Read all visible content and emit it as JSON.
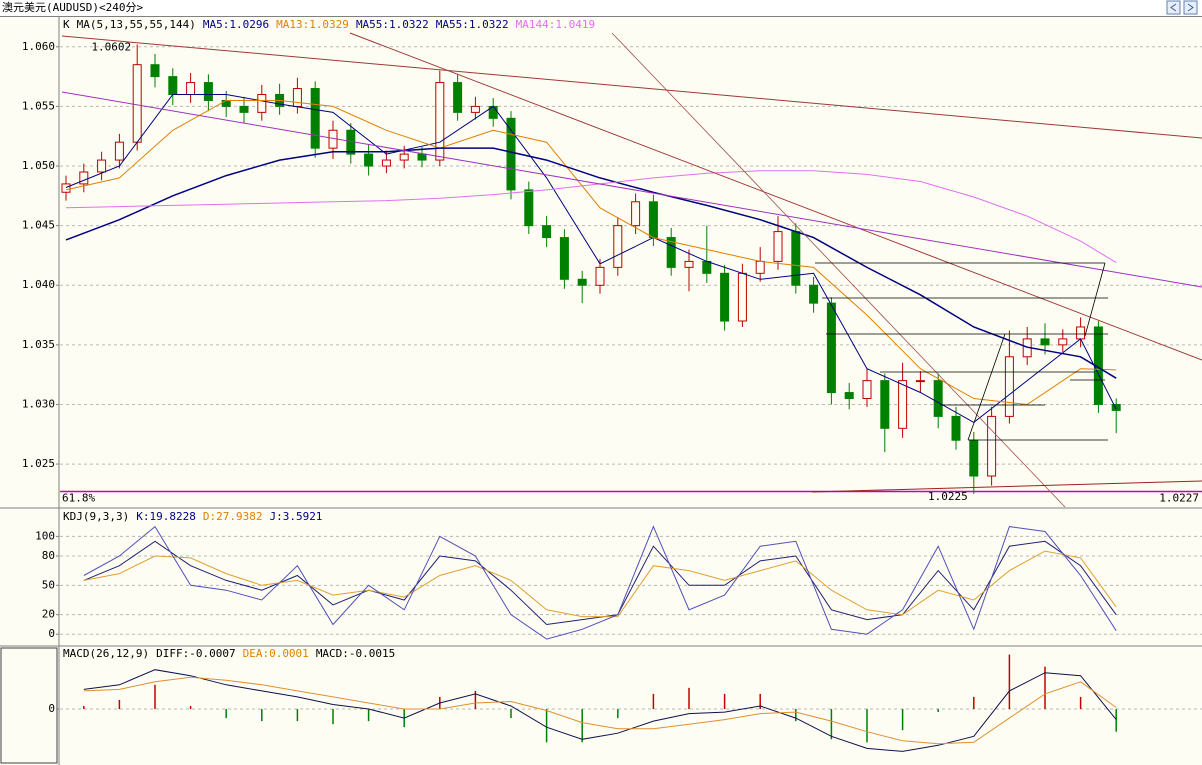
{
  "window_title": "澳元美元(AUDUSD)<240分>",
  "chart_data": [
    {
      "type": "candlestick",
      "header": [
        {
          "text": "K",
          "color": "#000000"
        },
        {
          "text": "MA(5,13,55,55,144)",
          "color": "#000000"
        },
        {
          "text": "MA5:1.0296",
          "color": "#000080"
        },
        {
          "text": "MA13:1.0329",
          "color": "#e08000"
        },
        {
          "text": "MA55:1.0322",
          "color": "#000080"
        },
        {
          "text": "MA55:1.0322",
          "color": "#000080"
        },
        {
          "text": "MA144:1.0419",
          "color": "#e070f0"
        }
      ],
      "up_color": "#c00000",
      "down_color": "#008000",
      "open": [
        1.0478,
        1.0485,
        1.0495,
        1.0505,
        1.052,
        1.0585,
        1.0575,
        1.056,
        1.057,
        1.0555,
        1.055,
        1.0545,
        1.056,
        1.055,
        1.0565,
        1.0515,
        1.053,
        1.051,
        1.05,
        1.0505,
        1.051,
        1.0505,
        1.057,
        1.0545,
        1.055,
        1.054,
        1.048,
        1.045,
        1.044,
        1.0405,
        1.04,
        1.0415,
        1.045,
        1.047,
        1.044,
        1.0415,
        1.042,
        1.041,
        1.037,
        1.041,
        1.042,
        1.0445,
        1.04,
        1.0385,
        1.031,
        1.0305,
        1.032,
        1.028,
        1.032,
        1.032,
        1.029,
        1.027,
        1.024,
        1.029,
        1.034,
        1.0355,
        1.035,
        1.0355,
        1.0365,
        1.03
      ],
      "high": [
        1.0492,
        1.0502,
        1.0512,
        1.0527,
        1.0602,
        1.0594,
        1.0582,
        1.0578,
        1.0577,
        1.0563,
        1.0558,
        1.0568,
        1.0569,
        1.0574,
        1.0571,
        1.0538,
        1.0536,
        1.0518,
        1.0513,
        1.0517,
        1.0516,
        1.058,
        1.0577,
        1.0558,
        1.0557,
        1.0546,
        1.0487,
        1.0458,
        1.0447,
        1.0412,
        1.0422,
        1.0457,
        1.0477,
        1.0476,
        1.0448,
        1.043,
        1.045,
        1.0417,
        1.0418,
        1.0432,
        1.0458,
        1.0452,
        1.0407,
        1.039,
        1.0318,
        1.033,
        1.0326,
        1.0335,
        1.0328,
        1.0326,
        1.0298,
        1.0277,
        1.0298,
        1.0362,
        1.0365,
        1.0368,
        1.0363,
        1.0373,
        1.037,
        1.0305
      ],
      "low": [
        1.0471,
        1.0478,
        1.0488,
        1.0498,
        1.0513,
        1.0566,
        1.0551,
        1.0553,
        1.0546,
        1.0541,
        1.0536,
        1.0538,
        1.0543,
        1.0544,
        1.0507,
        1.0506,
        1.0502,
        1.0492,
        1.0494,
        1.0498,
        1.0499,
        1.05,
        1.0538,
        1.0539,
        1.0533,
        1.0472,
        1.0443,
        1.0432,
        1.0397,
        1.0385,
        1.0393,
        1.0408,
        1.0443,
        1.0433,
        1.0408,
        1.0395,
        1.0402,
        1.0362,
        1.0365,
        1.0403,
        1.0413,
        1.0393,
        1.0377,
        1.03,
        1.0296,
        1.0298,
        1.026,
        1.0272,
        1.031,
        1.028,
        1.0262,
        1.0225,
        1.0232,
        1.0284,
        1.0333,
        1.0342,
        1.0344,
        1.0348,
        1.0293,
        1.0276
      ],
      "close": [
        1.0485,
        1.0495,
        1.0505,
        1.052,
        1.0585,
        1.0575,
        1.056,
        1.057,
        1.0555,
        1.055,
        1.0545,
        1.056,
        1.055,
        1.0565,
        1.0515,
        1.053,
        1.051,
        1.05,
        1.0505,
        1.051,
        1.0505,
        1.057,
        1.0545,
        1.055,
        1.054,
        1.048,
        1.045,
        1.044,
        1.0405,
        1.04,
        1.0415,
        1.045,
        1.047,
        1.044,
        1.0415,
        1.042,
        1.041,
        1.037,
        1.041,
        1.042,
        1.0445,
        1.04,
        1.0385,
        1.031,
        1.0305,
        1.032,
        1.028,
        1.032,
        1.032,
        1.029,
        1.027,
        1.024,
        1.029,
        1.034,
        1.0355,
        1.035,
        1.0355,
        1.0365,
        1.03,
        1.0295
      ],
      "series": [
        {
          "color": "#000080",
          "x": [
            0,
            3,
            6,
            9,
            12,
            15,
            18,
            21,
            24,
            27,
            30,
            33,
            36,
            39,
            42,
            45,
            48,
            51,
            54,
            57,
            59
          ],
          "values": [
            1.0482,
            1.05,
            1.056,
            1.056,
            1.0552,
            1.0545,
            1.051,
            1.052,
            1.055,
            1.049,
            1.0418,
            1.044,
            1.042,
            1.0405,
            1.041,
            1.033,
            1.031,
            1.0285,
            1.032,
            1.0355,
            1.0296
          ]
        },
        {
          "color": "#e08000",
          "x": [
            0,
            3,
            6,
            9,
            12,
            15,
            18,
            21,
            24,
            27,
            30,
            33,
            36,
            39,
            42,
            45,
            48,
            51,
            54,
            57,
            59
          ],
          "values": [
            1.048,
            1.049,
            1.053,
            1.0555,
            1.0555,
            1.055,
            1.053,
            1.0515,
            1.053,
            1.052,
            1.0465,
            1.044,
            1.043,
            1.042,
            1.0415,
            1.0375,
            1.033,
            1.0305,
            1.03,
            1.033,
            1.0329
          ]
        },
        {
          "color": "#000080",
          "width": 1.5,
          "x": [
            0,
            3,
            6,
            9,
            12,
            15,
            18,
            21,
            24,
            27,
            30,
            33,
            36,
            39,
            42,
            45,
            48,
            51,
            54,
            57,
            59
          ],
          "values": [
            1.0438,
            1.0455,
            1.0475,
            1.0492,
            1.0505,
            1.0512,
            1.0512,
            1.0515,
            1.0515,
            1.0505,
            1.049,
            1.0478,
            1.0467,
            1.0455,
            1.044,
            1.0415,
            1.0392,
            1.0365,
            1.0348,
            1.034,
            1.0322
          ]
        },
        {
          "color": "#e070f0",
          "x": [
            0,
            3,
            6,
            9,
            12,
            15,
            18,
            21,
            24,
            27,
            30,
            33,
            36,
            39,
            42,
            45,
            48,
            51,
            54,
            57,
            59
          ],
          "values": [
            1.0465,
            1.0466,
            1.0467,
            1.0468,
            1.0469,
            1.047,
            1.0471,
            1.0473,
            1.0476,
            1.048,
            1.0485,
            1.049,
            1.0494,
            1.0496,
            1.0496,
            1.0493,
            1.0487,
            1.0474,
            1.0458,
            1.0437,
            1.0419
          ]
        }
      ],
      "annotations": [
        1.0602,
        1.0225
      ],
      "fib_level": {
        "name": "61.8%",
        "value": 1.0227,
        "color": "#c000c0"
      },
      "ylim": [
        1.0214,
        1.0625
      ],
      "yticks": [
        1.025,
        {
          "value": 1.03,
          "label": "1.030"
        },
        1.035,
        {
          "value": 1.04,
          "label": "1.040"
        },
        1.045,
        {
          "value": 1.05,
          "label": "1.050"
        },
        1.055,
        {
          "value": 1.06,
          "label": "1.060"
        }
      ],
      "grid": true
    },
    {
      "type": "line",
      "header": [
        {
          "text": "KDJ(9,3,3)",
          "color": "#000000"
        },
        {
          "text": "K:19.8228",
          "color": "#000080"
        },
        {
          "text": "D:27.9382",
          "color": "#e08000"
        },
        {
          "text": "J:3.5921",
          "color": "#000080"
        }
      ],
      "x": [
        1,
        3,
        5,
        7,
        9,
        11,
        13,
        15,
        17,
        19,
        21,
        23,
        25,
        27,
        29,
        31,
        33,
        35,
        37,
        39,
        41,
        43,
        45,
        47,
        49,
        51,
        53,
        55,
        57,
        59
      ],
      "series": [
        {
          "color": "#20206e",
          "values": [
            55,
            70,
            95,
            70,
            55,
            45,
            60,
            30,
            45,
            35,
            80,
            75,
            45,
            10,
            15,
            20,
            90,
            50,
            50,
            75,
            80,
            25,
            15,
            20,
            65,
            25,
            90,
            95,
            70,
            19.8228
          ]
        },
        {
          "color": "#e0a030",
          "values": [
            55,
            62,
            80,
            78,
            62,
            50,
            55,
            40,
            45,
            38,
            60,
            70,
            55,
            25,
            18,
            18,
            70,
            65,
            55,
            65,
            75,
            45,
            25,
            20,
            45,
            35,
            65,
            85,
            78,
            27.9382
          ]
        },
        {
          "color": "#5050b8",
          "values": [
            60,
            80,
            110,
            50,
            45,
            35,
            70,
            10,
            50,
            25,
            100,
            80,
            20,
            -5,
            5,
            20,
            110,
            25,
            40,
            90,
            95,
            5,
            0,
            25,
            90,
            5,
            110,
            105,
            60,
            3.5921
          ]
        }
      ],
      "ylim": [
        -11,
        128
      ],
      "yticks": [
        0,
        20,
        50,
        80,
        100
      ],
      "grid": true
    },
    {
      "type": "macd",
      "header": [
        {
          "text": "MACD(26,12,9)",
          "color": "#000000"
        },
        {
          "text": "DIFF:-0.0007",
          "color": "#000000"
        },
        {
          "text": "DEA:0.0001",
          "color": "#e08000"
        },
        {
          "text": "MACD:-0.0015",
          "color": "#000000"
        }
      ],
      "x": [
        1,
        3,
        5,
        7,
        9,
        11,
        13,
        15,
        17,
        19,
        21,
        23,
        25,
        27,
        29,
        31,
        33,
        35,
        37,
        39,
        41,
        43,
        45,
        47,
        49,
        51,
        53,
        55,
        57,
        59
      ],
      "series": [
        {
          "color": "#10104a",
          "values": [
            0.0013,
            0.0016,
            0.0026,
            0.0022,
            0.0016,
            0.0012,
            0.0008,
            0.0003,
            0.0,
            -0.0006,
            0.0004,
            0.001,
            0.0002,
            -0.0012,
            -0.002,
            -0.0016,
            -0.0008,
            -0.0003,
            -0.0002,
            0.0002,
            -0.0006,
            -0.0018,
            -0.0026,
            -0.0028,
            -0.0024,
            -0.0018,
            0.0012,
            0.0024,
            0.0022,
            -0.0007
          ]
        },
        {
          "color": "#e09030",
          "values": [
            0.0012,
            0.0013,
            0.0018,
            0.0021,
            0.0019,
            0.0016,
            0.0012,
            0.0008,
            0.0004,
            0.0,
            0.0,
            0.0004,
            0.0005,
            -0.0001,
            -0.0009,
            -0.0013,
            -0.0013,
            -0.001,
            -0.0007,
            -0.0003,
            -0.0002,
            -0.0008,
            -0.0015,
            -0.0021,
            -0.0023,
            -0.0022,
            -0.0006,
            0.001,
            0.0018,
            0.0001
          ]
        }
      ],
      "bars": [
        0.0002,
        0.0006,
        0.0016,
        0.0002,
        -0.0006,
        -0.0008,
        -0.0008,
        -0.001,
        -0.0008,
        -0.0012,
        0.0008,
        0.0012,
        -0.0006,
        -0.0022,
        -0.0022,
        -0.0006,
        0.001,
        0.0014,
        0.001,
        0.001,
        -0.0008,
        -0.002,
        -0.0022,
        -0.0014,
        -0.0002,
        0.0008,
        0.0036,
        0.0028,
        0.0008,
        -0.0015
      ],
      "up_color": "#c00000",
      "down_color": "#008000",
      "ylim": [
        -0.0037,
        0.0041
      ],
      "yticks": [
        0
      ],
      "grid": true
    }
  ]
}
